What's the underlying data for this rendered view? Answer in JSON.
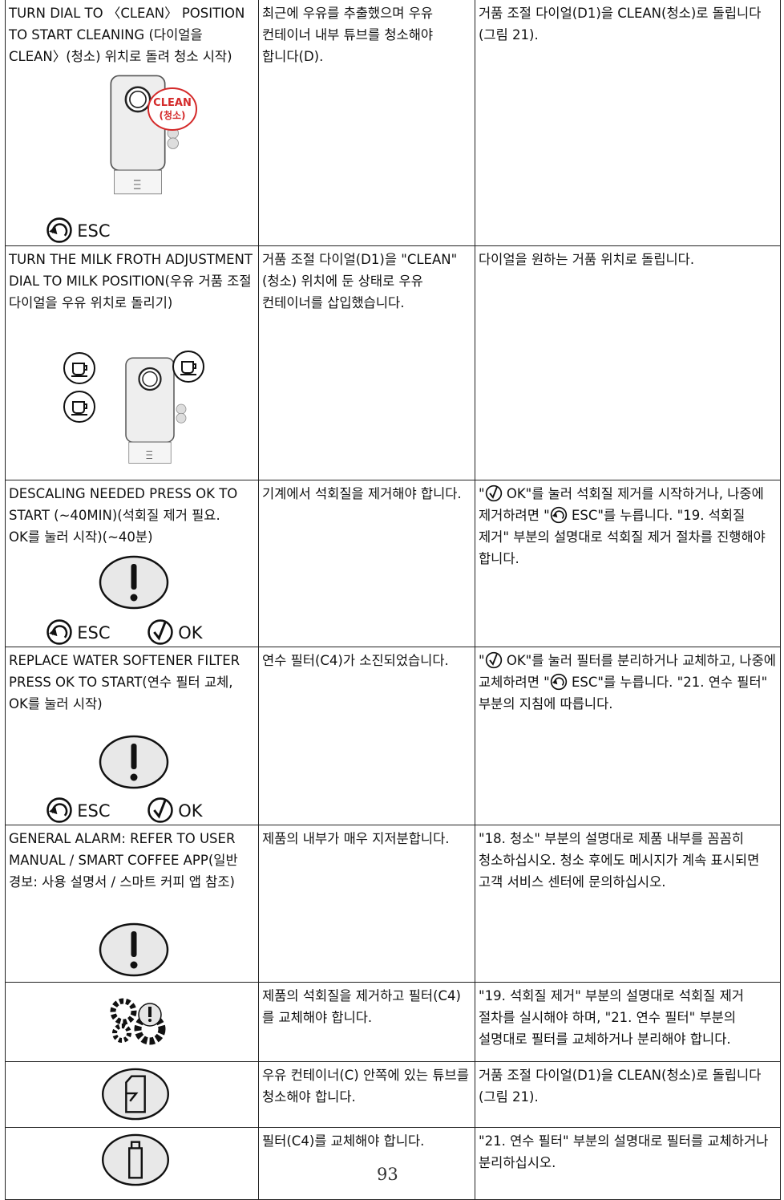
{
  "table": {
    "rows": [
      {
        "message": "TURN DIAL TO 〈CLEAN〉 POSITION TO START CLEANING (다이얼을 CLEAN〉(청소) 위치로 돌려 청소 시작)",
        "icon_labels": [
          "CLEAN",
          "(청소)",
          "ESC"
        ],
        "cause": "최근에 우유를 추출했으며 우유 컨테이너 내부 튜브를 청소해야 합니다(D).",
        "solution": "거품 조절 다이얼(D1)을 CLEAN(청소)로 돌립니다(그림 21)."
      },
      {
        "message": "TURN THE MILK FROTH ADJUSTMENT DIAL TO MILK POSITION(우유 거품 조절 다이얼을 우유 위치로 돌리기)",
        "cause": "거품 조절 다이얼(D1)을 \"CLEAN\"(청소) 위치에 둔 상태로 우유 컨테이너를 삽입했습니다.",
        "solution": "다이얼을 원하는 거품 위치로 돌립니다."
      },
      {
        "message": "DESCALING NEEDED PRESS OK TO START (~40MIN)(석회질 제거 필요. OK를 눌러 시작)(~40분)",
        "icon_labels": [
          "ESC",
          "OK"
        ],
        "cause": "기계에서 석회질을 제거해야 합니다.",
        "solution": [
          "\"",
          "OK\"를 눌러 석회질 제거를 시작하거나, 나중에 제거하려면 \"",
          "ESC\"를 누릅니다. \"19. 석회질 제거\" 부분의 설명대로 석회질 제거 절차를 진행해야 합니다."
        ]
      },
      {
        "message": "REPLACE WATER SOFTENER FILTER PRESS OK TO START(연수 필터 교체, OK를 눌러 시작)",
        "icon_labels": [
          "ESC",
          "OK"
        ],
        "cause": "연수 필터(C4)가 소진되었습니다.",
        "solution": [
          "\"",
          "OK\"를 눌러 필터를 분리하거나 교체하고, 나중에 교체하려면 \"",
          "ESC\"를 누릅니다. \"21. 연수 필터\" 부분의 지침에 따릅니다."
        ]
      },
      {
        "message": "GENERAL ALARM: REFER TO USER MANUAL / SMART COFFEE APP(일반 경보: 사용 설명서 / 스마트 커피 앱 참조)",
        "cause": "제품의 내부가 매우 지저분합니다.",
        "solution": "\"18. 청소\" 부분의 설명대로 제품 내부를 꼼꼼히 청소하십시오. 청소 후에도 메시지가 계속 표시되면 고객 서비스 센터에 문의하십시오."
      },
      {
        "cause": "제품의 석회질을 제거하고 필터(C4)를 교체해야 합니다.",
        "solution": "\"19. 석회질 제거\" 부분의 설명대로 석회질 제거 절차를 실시해야 하며, \"21. 연수 필터\" 부분의 설명대로 필터를 교체하거나 분리해야 합니다."
      },
      {
        "cause": "우유 컨테이너(C) 안쪽에 있는 튜브를 청소해야 합니다.",
        "solution": "거품 조절 다이얼(D1)을 CLEAN(청소)로 돌립니다(그림 21)."
      },
      {
        "cause": "필터(C4)를 교체해야 합니다.",
        "solution": "\"21. 연수 필터\" 부분의 설명대로 필터를 교체하거나 분리하십시오."
      }
    ]
  },
  "page_number": "93"
}
